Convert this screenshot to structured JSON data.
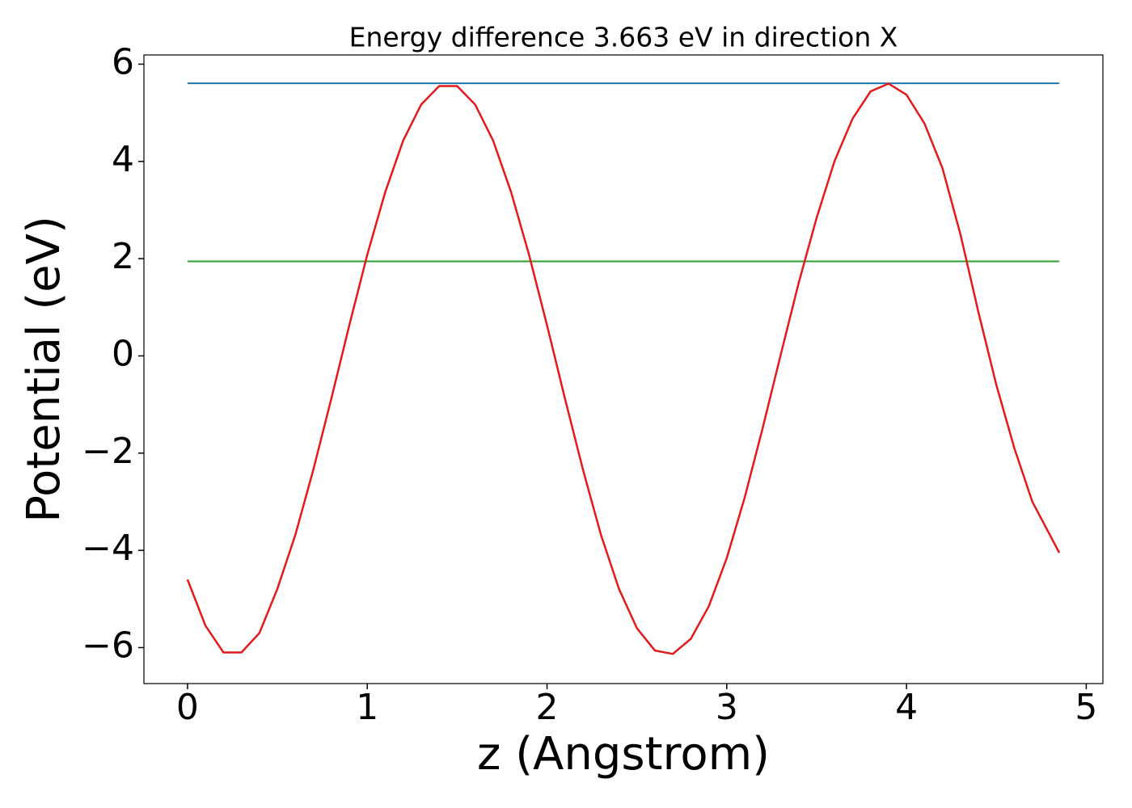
{
  "chart_data": {
    "type": "line",
    "title": "Energy difference 3.663 eV in direction X",
    "xlabel": "z (Angstrom)",
    "ylabel": "Potential (eV)",
    "xlim": [
      -0.2425,
      5.0925
    ],
    "ylim": [
      -6.74,
      6.19
    ],
    "xticks": [
      0,
      1,
      2,
      3,
      4,
      5
    ],
    "yticks": [
      {
        "value": -6,
        "label": "−6"
      },
      {
        "value": -4,
        "label": "−4"
      },
      {
        "value": -2,
        "label": "−2"
      },
      0,
      2,
      4,
      6
    ],
    "hlines": [
      {
        "color": "#1f77b4",
        "value": 5.607,
        "xmin": 0,
        "xmax": 4.85
      },
      {
        "color": "#2ca02c",
        "value": 1.944,
        "xmin": 0,
        "xmax": 4.85
      }
    ],
    "x": [
      0,
      0.1,
      0.2,
      0.3,
      0.4,
      0.5,
      0.6,
      0.7,
      0.8,
      0.9,
      1.0,
      1.1,
      1.2,
      1.3,
      1.4,
      1.5,
      1.6,
      1.7,
      1.8,
      1.9,
      2.0,
      2.1,
      2.2,
      2.3,
      2.4,
      2.5,
      2.6,
      2.7,
      2.8,
      2.9,
      3.0,
      3.1,
      3.2,
      3.3,
      3.4,
      3.5,
      3.6,
      3.7,
      3.8,
      3.9,
      4.0,
      4.1,
      4.2,
      4.3,
      4.4,
      4.5,
      4.6,
      4.7,
      4.8,
      4.85
    ],
    "series": [
      {
        "color": "#e31a1c",
        "values": [
          -4.6,
          -5.55,
          -6.1,
          -6.1,
          -5.7,
          -4.79,
          -3.68,
          -2.34,
          -0.88,
          0.63,
          2.08,
          3.37,
          4.43,
          5.17,
          5.55,
          5.55,
          5.17,
          4.43,
          3.37,
          2.08,
          0.63,
          -0.88,
          -2.34,
          -3.68,
          -4.79,
          -5.6,
          -6.06,
          -6.13,
          -5.82,
          -5.15,
          -4.16,
          -2.91,
          -1.48,
          0.02,
          1.5,
          2.84,
          4.01,
          4.88,
          5.44,
          5.6,
          5.37,
          4.78,
          3.86,
          2.5,
          0.9,
          -0.6,
          -1.9,
          -3.0,
          -3.7,
          -4.05
        ]
      }
    ]
  }
}
